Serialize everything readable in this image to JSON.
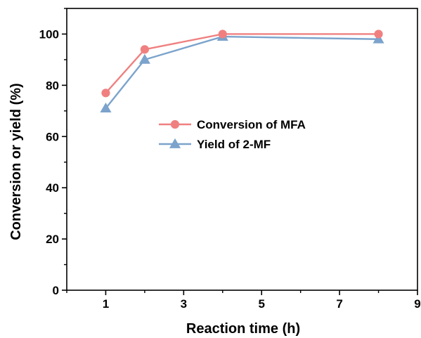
{
  "chart_data": {
    "type": "line",
    "title": "",
    "xlabel": "Reaction time (h)",
    "ylabel": "Conversion or yield (%)",
    "xlim": [
      0,
      9
    ],
    "ylim": [
      0,
      110
    ],
    "xticks": [
      1,
      3,
      5,
      7,
      9
    ],
    "xtick_labels": [
      "1",
      "3",
      "5",
      "7",
      "9"
    ],
    "yticks": [
      0,
      20,
      40,
      60,
      80,
      100
    ],
    "ytick_labels": [
      "0",
      "20",
      "40",
      "60",
      "80",
      "100"
    ],
    "grid": false,
    "legend_position": "center",
    "series": [
      {
        "name": "Conversion of MFA",
        "marker": "circle",
        "color": "#f08080",
        "x": [
          1,
          2,
          4,
          8
        ],
        "y": [
          77,
          94,
          100,
          100
        ]
      },
      {
        "name": "Yield of 2-MF",
        "marker": "triangle",
        "color": "#7ba3cc",
        "x": [
          1,
          2,
          4,
          8
        ],
        "y": [
          71,
          90,
          99,
          98
        ]
      }
    ]
  }
}
